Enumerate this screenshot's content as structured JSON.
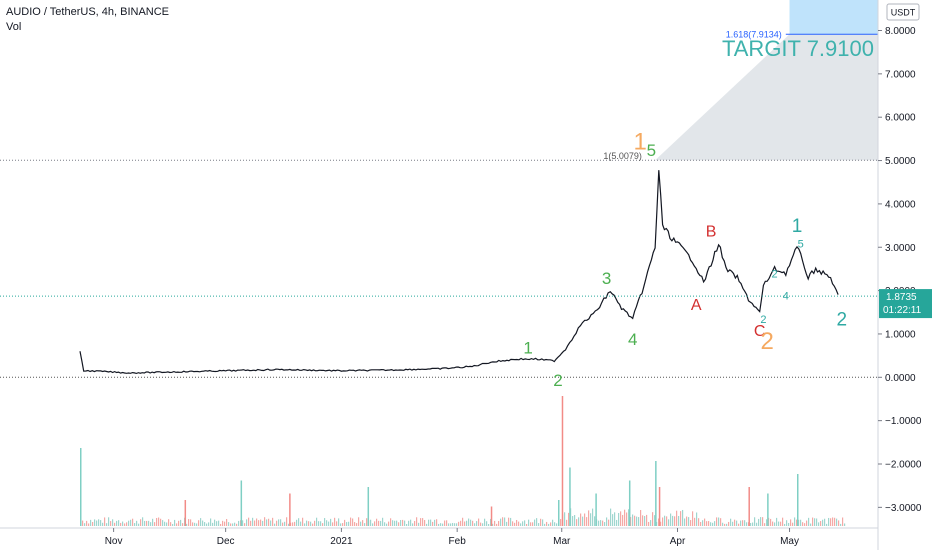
{
  "header": {
    "title": "AUDIO / TetherUS, 4h, BINANCE",
    "volume_label": "Vol"
  },
  "currency_badge": "USDT",
  "price_tag": {
    "price": "1.8735",
    "countdown": "01:22:11",
    "value": 1.8735
  },
  "target_label": "TARGIT 7.9100",
  "fib_levels": [
    {
      "label": "1(5.0079)",
      "value": 5.0079
    },
    {
      "label": "1.618(7.9134)",
      "value": 7.9134
    }
  ],
  "colors": {
    "candle": "#131722",
    "green": "#26a69a",
    "red": "#ef5350",
    "fib_fill": "#dfe3e8",
    "target_fill": "#bfe3fb",
    "target_text": "#3fb2ad",
    "wave_green": "#4caf50",
    "wave_orange": "#f5a960",
    "wave_red": "#d32f2f",
    "wave_teal": "#2fa9a3",
    "price_tag": "#26a69a"
  },
  "chart_data": {
    "type": "line",
    "title": "AUDIO / TetherUS, 4h, BINANCE",
    "ylim": [
      -3.3,
      8.6
    ],
    "y_ticks": [
      "8.0000",
      "7.0000",
      "6.0000",
      "5.0000",
      "4.0000",
      "3.0000",
      "2.0000",
      "1.0000",
      "0.0000",
      "−1.0000",
      "−2.0000",
      "−3.0000"
    ],
    "x_ticks": [
      "Nov",
      "Dec",
      "2021",
      "Feb",
      "Mar",
      "Apr",
      "May"
    ],
    "series": [
      {
        "x": [
          "2020-10-23",
          "2020-10-24",
          "2020-10-28",
          "2020-11-05",
          "2020-11-15",
          "2020-12-01",
          "2020-12-15",
          "2021-01-01",
          "2021-01-15",
          "2021-01-28",
          "2021-02-05",
          "2021-02-10",
          "2021-02-17",
          "2021-02-22",
          "2021-02-27",
          "2021-03-02",
          "2021-03-06",
          "2021-03-10",
          "2021-03-14",
          "2021-03-17",
          "2021-03-20",
          "2021-03-23",
          "2021-03-26",
          "2021-03-27",
          "2021-03-28",
          "2021-03-30",
          "2021-04-02",
          "2021-04-05",
          "2021-04-08",
          "2021-04-10",
          "2021-04-12",
          "2021-04-14",
          "2021-04-17",
          "2021-04-20",
          "2021-04-23",
          "2021-04-24",
          "2021-04-27",
          "2021-04-30",
          "2021-05-03",
          "2021-05-04",
          "2021-05-06",
          "2021-05-08",
          "2021-05-10",
          "2021-05-12",
          "2021-05-14"
        ],
        "values": [
          0.6,
          0.15,
          0.14,
          0.1,
          0.12,
          0.15,
          0.18,
          0.15,
          0.17,
          0.2,
          0.25,
          0.35,
          0.42,
          0.42,
          0.38,
          0.65,
          1.2,
          1.5,
          2.0,
          1.6,
          1.35,
          2.1,
          3.0,
          4.8,
          3.5,
          3.25,
          3.0,
          2.7,
          2.2,
          2.6,
          3.1,
          2.5,
          2.3,
          1.8,
          1.5,
          2.1,
          2.5,
          2.4,
          3.0,
          2.8,
          2.3,
          2.5,
          2.4,
          2.3,
          1.87
        ]
      }
    ],
    "volume_spikes": [
      {
        "x": "2020-10-23",
        "v": 0.6,
        "color": "green"
      },
      {
        "x": "2020-11-20",
        "v": 0.2,
        "color": "red"
      },
      {
        "x": "2020-12-05",
        "v": 0.35,
        "color": "green"
      },
      {
        "x": "2020-12-18",
        "v": 0.25,
        "color": "red"
      },
      {
        "x": "2021-01-08",
        "v": 0.3,
        "color": "green"
      },
      {
        "x": "2021-02-10",
        "v": 0.15,
        "color": "red"
      },
      {
        "x": "2021-02-28",
        "v": 0.2,
        "color": "green"
      },
      {
        "x": "2021-03-01",
        "v": 1.0,
        "color": "red"
      },
      {
        "x": "2021-03-03",
        "v": 0.45,
        "color": "green"
      },
      {
        "x": "2021-03-10",
        "v": 0.25,
        "color": "green"
      },
      {
        "x": "2021-03-19",
        "v": 0.35,
        "color": "green"
      },
      {
        "x": "2021-03-26",
        "v": 0.5,
        "color": "green"
      },
      {
        "x": "2021-03-27",
        "v": 0.3,
        "color": "red"
      },
      {
        "x": "2021-04-20",
        "v": 0.3,
        "color": "red"
      },
      {
        "x": "2021-04-25",
        "v": 0.25,
        "color": "green"
      },
      {
        "x": "2021-05-03",
        "v": 0.4,
        "color": "green"
      }
    ],
    "wave_labels": [
      {
        "text": "1",
        "x": "2021-02-20",
        "y": 0.55,
        "color": "wave_green",
        "size": 17
      },
      {
        "text": "2",
        "x": "2021-02-28",
        "y": -0.2,
        "color": "wave_green",
        "size": 17
      },
      {
        "text": "3",
        "x": "2021-03-13",
        "y": 2.15,
        "color": "wave_green",
        "size": 17
      },
      {
        "text": "4",
        "x": "2021-03-20",
        "y": 0.75,
        "color": "wave_green",
        "size": 17
      },
      {
        "text": "1",
        "x": "2021-03-22",
        "y": 5.25,
        "color": "wave_orange",
        "size": 24
      },
      {
        "text": "5",
        "x": "2021-03-25",
        "y": 5.1,
        "color": "wave_green",
        "size": 17
      },
      {
        "text": "B",
        "x": "2021-04-10",
        "y": 3.25,
        "color": "wave_red",
        "size": 16
      },
      {
        "text": "A",
        "x": "2021-04-06",
        "y": 1.55,
        "color": "wave_red",
        "size": 16
      },
      {
        "text": "C",
        "x": "2021-04-23",
        "y": 0.95,
        "color": "wave_red",
        "size": 16
      },
      {
        "text": "2",
        "x": "2021-04-24",
        "y": 1.25,
        "color": "wave_teal",
        "size": 11
      },
      {
        "text": "2",
        "x": "2021-04-25",
        "y": 0.65,
        "color": "wave_orange",
        "size": 24
      },
      {
        "text": "2",
        "x": "2021-04-27",
        "y": 2.3,
        "color": "wave_teal",
        "size": 11
      },
      {
        "text": "4",
        "x": "2021-04-30",
        "y": 1.8,
        "color": "wave_teal",
        "size": 11
      },
      {
        "text": "1",
        "x": "2021-05-03",
        "y": 3.35,
        "color": "wave_teal",
        "size": 19
      },
      {
        "text": "5",
        "x": "2021-05-04",
        "y": 3.0,
        "color": "wave_teal",
        "size": 11
      },
      {
        "text": "2",
        "x": "2021-05-15",
        "y": 1.2,
        "color": "wave_teal",
        "size": 19
      }
    ]
  }
}
